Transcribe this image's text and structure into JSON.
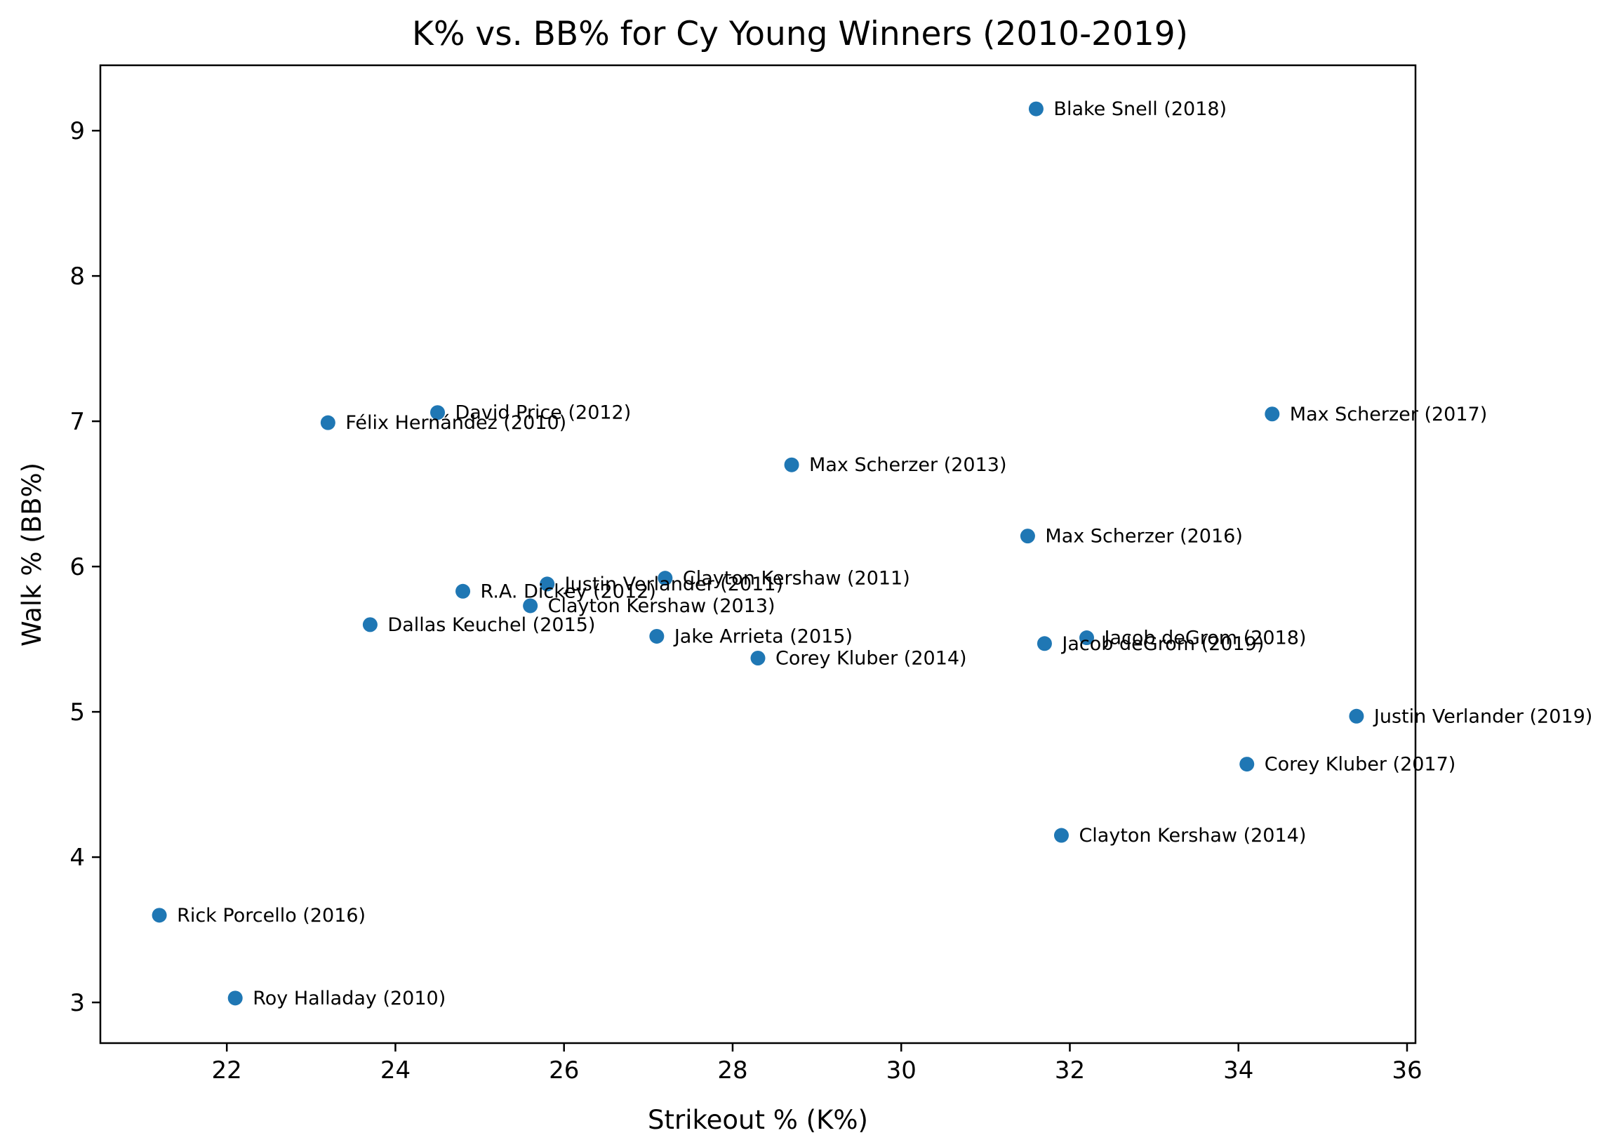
{
  "chart_data": {
    "type": "scatter",
    "title": "K% vs. BB% for Cy Young Winners (2010-2019)",
    "xlabel": "Strikeout % (K%)",
    "ylabel": "Walk % (BB%)",
    "xlim": [
      20.5,
      36.1
    ],
    "ylim": [
      2.72,
      9.45
    ],
    "xticks": [
      22,
      24,
      26,
      28,
      30,
      32,
      34,
      36
    ],
    "yticks": [
      3,
      4,
      5,
      6,
      7,
      8,
      9
    ],
    "marker_color": "#1f77b4",
    "grid": false,
    "points": [
      {
        "label": "Blake Snell (2018)",
        "x": 31.6,
        "y": 9.15
      },
      {
        "label": "Max Scherzer (2017)",
        "x": 34.4,
        "y": 7.05
      },
      {
        "label": "David Price (2012)",
        "x": 24.5,
        "y": 7.06
      },
      {
        "label": "Félix Hernández (2010)",
        "x": 23.2,
        "y": 6.99
      },
      {
        "label": "Max Scherzer (2013)",
        "x": 28.7,
        "y": 6.7
      },
      {
        "label": "Max Scherzer (2016)",
        "x": 31.5,
        "y": 6.21
      },
      {
        "label": "Clayton Kershaw (2011)",
        "x": 27.2,
        "y": 5.92
      },
      {
        "label": "Justin Verlander (2011)",
        "x": 25.8,
        "y": 5.88
      },
      {
        "label": "R.A. Dickey (2012)",
        "x": 24.8,
        "y": 5.83
      },
      {
        "label": "Clayton Kershaw (2013)",
        "x": 25.6,
        "y": 5.73
      },
      {
        "label": "Dallas Keuchel (2015)",
        "x": 23.7,
        "y": 5.6
      },
      {
        "label": "Jake Arrieta (2015)",
        "x": 27.1,
        "y": 5.52
      },
      {
        "label": "Jacob deGrom (2018)",
        "x": 32.2,
        "y": 5.51
      },
      {
        "label": "Jacob deGrom (2019)",
        "x": 31.7,
        "y": 5.47
      },
      {
        "label": "Corey Kluber (2014)",
        "x": 28.3,
        "y": 5.37
      },
      {
        "label": "Justin Verlander (2019)",
        "x": 35.4,
        "y": 4.97
      },
      {
        "label": "Corey Kluber (2017)",
        "x": 34.1,
        "y": 4.64
      },
      {
        "label": "Clayton Kershaw (2014)",
        "x": 31.9,
        "y": 4.15
      },
      {
        "label": "Rick Porcello (2016)",
        "x": 21.2,
        "y": 3.6
      },
      {
        "label": "Roy Halladay (2010)",
        "x": 22.1,
        "y": 3.03
      }
    ]
  }
}
